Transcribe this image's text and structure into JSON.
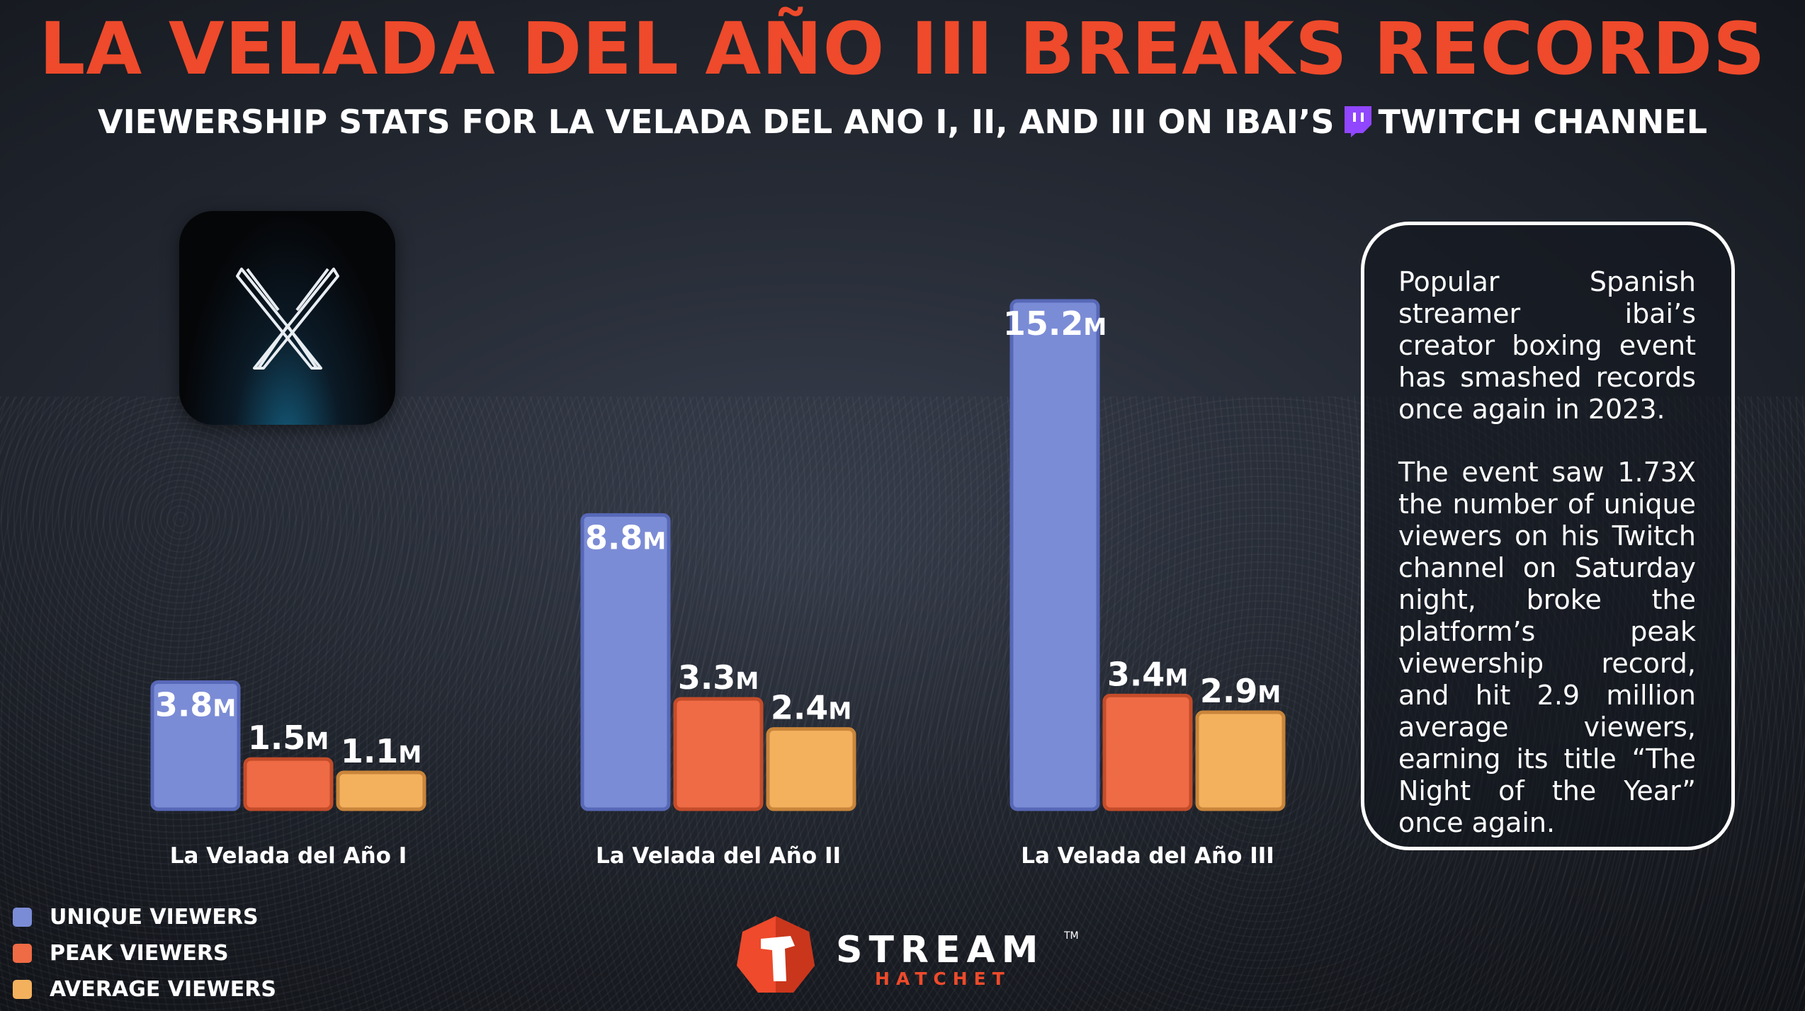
{
  "header": {
    "title": "LA VELADA DEL AÑO III BREAKS RECORDS",
    "subtitle_before": "VIEWERSHIP STATS FOR LA VELADA DEL ANO I, II, AND III ON IBAI’S",
    "subtitle_after": "TWITCH CHANNEL"
  },
  "info_box": {
    "paragraph1": "Popular Spanish streamer ibai’s creator boxing event has smashed records once again in 2023.",
    "paragraph2": "The event saw 1.73X the number of unique viewers on his Twitch channel on Saturday night, broke the platform’s peak viewership record, and hit 2.9 million average viewers, earning its title “The Night of the Year” once again."
  },
  "logo": {
    "stream": "STREAM",
    "hatchet": "HATCHET",
    "tm": "TM"
  },
  "colors": {
    "title": "#ee4a2b",
    "unique": "#7b8cd6",
    "peak": "#ee6b45",
    "average": "#f3b15e",
    "twitch": "#9146ff"
  },
  "chart_data": {
    "type": "bar",
    "categories": [
      "La Velada del Año I",
      "La Velada del Año II",
      "La Velada del Año III"
    ],
    "unit_suffix": "M",
    "ylim": [
      0,
      15.2
    ],
    "series": [
      {
        "name": "UNIQUE VIEWERS",
        "color": "#7b8cd6",
        "border": "#5768b8",
        "values": [
          3.8,
          8.8,
          15.2
        ],
        "labels": [
          "3.8",
          "8.8",
          "15.2"
        ]
      },
      {
        "name": "PEAK VIEWERS",
        "color": "#ee6b45",
        "border": "#c44c2a",
        "values": [
          1.5,
          3.3,
          3.4
        ],
        "labels": [
          "1.5",
          "3.3",
          "3.4"
        ]
      },
      {
        "name": "AVERAGE VIEWERS",
        "color": "#f3b15e",
        "border": "#c9853a",
        "values": [
          1.1,
          2.4,
          2.9
        ],
        "labels": [
          "1.1",
          "2.4",
          "2.9"
        ]
      }
    ],
    "legend": "bottom-left",
    "grid": false
  }
}
